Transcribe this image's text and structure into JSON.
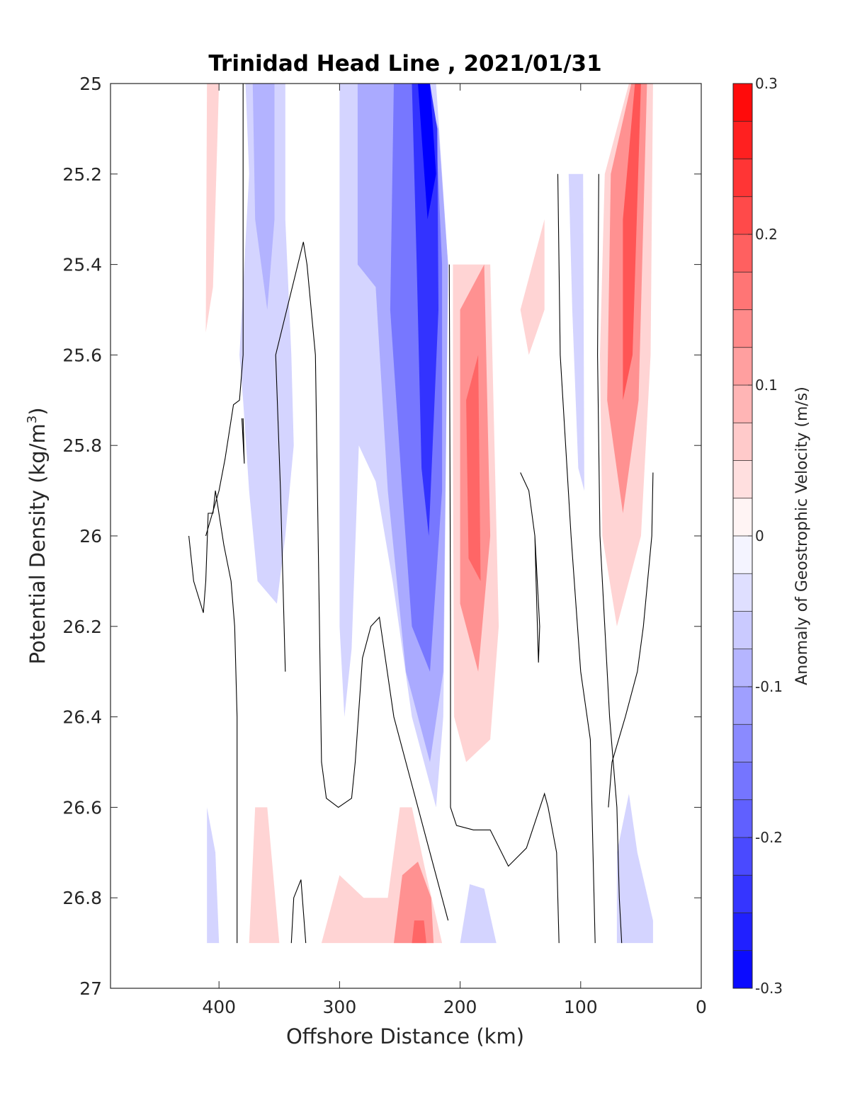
{
  "chart_data": {
    "type": "heatmap",
    "title": "Trinidad Head Line , 2021/01/31",
    "xlabel": "Offshore Distance (km)",
    "ylabel": "Potential Density (kg/m",
    "ylabel_superscript": "3",
    "ylabel_suffix": ")",
    "xlim": [
      490,
      0
    ],
    "ylim": [
      25,
      27
    ],
    "x_reversed": true,
    "y_reversed": true,
    "x_ticks": [
      400,
      300,
      200,
      100,
      0
    ],
    "y_ticks": [
      25,
      25.2,
      25.4,
      25.6,
      25.8,
      26,
      26.2,
      26.4,
      26.6,
      26.8,
      27
    ],
    "x_tick_labels": [
      "400",
      "300",
      "200",
      "100",
      "0"
    ],
    "y_tick_labels": [
      "25",
      "25.2",
      "25.4",
      "25.6",
      "25.8",
      "26",
      "26.2",
      "26.4",
      "26.6",
      "26.8",
      "27"
    ],
    "colorbar": {
      "label": "Anomaly of Geostrophic Velocity (m/s)",
      "range": [
        -0.3,
        0.3
      ],
      "levels": 24,
      "ticks": [
        -0.3,
        -0.2,
        -0.1,
        0,
        0.1,
        0.2,
        0.3
      ],
      "tick_labels": [
        "-0.3",
        "-0.2",
        "-0.1",
        "0",
        "0.1",
        "0.2",
        "0.3"
      ],
      "colormap": "blue-white-red"
    },
    "grid": false,
    "contours": [
      {
        "level": 0,
        "points": [
          [
            380,
            25
          ],
          [
            380,
            25.6
          ],
          [
            383,
            25.7
          ],
          [
            388,
            25.71
          ],
          [
            395,
            25.83
          ],
          [
            400,
            25.9
          ],
          [
            411,
            26
          ]
        ]
      },
      {
        "level": 0,
        "points": [
          [
            380,
            25.74
          ],
          [
            379,
            25.84
          ],
          [
            381,
            25.74
          ]
        ]
      },
      {
        "level": 0,
        "points": [
          [
            385,
            26.9
          ],
          [
            385,
            26.4
          ],
          [
            386,
            26.3
          ],
          [
            387,
            26.2
          ],
          [
            390,
            26.1
          ],
          [
            396,
            26.02
          ],
          [
            403,
            25.9
          ],
          [
            405,
            25.95
          ],
          [
            409,
            25.95
          ],
          [
            411,
            26.1
          ],
          [
            413,
            26.17
          ],
          [
            421,
            26.1
          ],
          [
            425,
            26
          ]
        ]
      },
      {
        "level": 0,
        "points": [
          [
            340,
            26.9
          ],
          [
            338,
            26.8
          ],
          [
            332,
            26.76
          ],
          [
            328,
            26.9
          ]
        ]
      },
      {
        "level": 0,
        "points": [
          [
            345,
            26.3
          ],
          [
            349,
            25.9
          ],
          [
            353,
            25.6
          ],
          [
            330,
            25.35
          ],
          [
            327,
            25.4
          ],
          [
            320,
            25.6
          ],
          [
            315,
            26.5
          ],
          [
            311,
            26.58
          ],
          [
            301,
            26.6
          ],
          [
            290,
            26.58
          ],
          [
            287,
            26.5
          ],
          [
            281,
            26.27
          ],
          [
            274,
            26.2
          ],
          [
            267,
            26.18
          ],
          [
            255,
            26.4
          ],
          [
            240,
            26.55
          ],
          [
            225,
            26.7
          ],
          [
            210,
            26.85
          ]
        ]
      },
      {
        "level": 0,
        "points": [
          [
            209,
            25.4
          ],
          [
            208,
            26.2
          ],
          [
            208,
            26.6
          ],
          [
            203,
            26.64
          ],
          [
            189,
            26.65
          ],
          [
            175,
            26.65
          ],
          [
            160,
            26.73
          ],
          [
            145,
            26.69
          ],
          [
            140,
            26.65
          ],
          [
            130,
            26.57
          ],
          [
            127,
            26.6
          ],
          [
            120,
            26.7
          ],
          [
            118,
            26.9
          ]
        ]
      },
      {
        "level": 0,
        "points": [
          [
            150,
            25.86
          ],
          [
            143,
            25.9
          ],
          [
            138,
            26.0
          ],
          [
            137,
            26.1
          ],
          [
            135,
            26.28
          ],
          [
            134,
            26.2
          ],
          [
            138,
            26.0
          ]
        ]
      },
      {
        "level": 0,
        "points": [
          [
            119,
            25.2
          ],
          [
            117,
            25.6
          ],
          [
            108,
            26
          ],
          [
            100,
            26.3
          ],
          [
            92,
            26.45
          ],
          [
            88,
            26.9
          ]
        ]
      },
      {
        "level": 0,
        "points": [
          [
            85,
            25.2
          ],
          [
            86,
            25.6
          ],
          [
            84,
            26
          ],
          [
            80,
            26.2
          ],
          [
            76,
            26.4
          ],
          [
            70,
            26.6
          ],
          [
            68,
            26.8
          ],
          [
            66,
            26.9
          ]
        ]
      },
      {
        "level": 0,
        "points": [
          [
            40,
            25.86
          ],
          [
            41,
            26
          ],
          [
            48,
            26.2
          ],
          [
            53,
            26.3
          ],
          [
            63,
            26.4
          ],
          [
            74,
            26.5
          ],
          [
            77,
            26.6
          ]
        ]
      }
    ],
    "regions": [
      {
        "value": -0.05,
        "points": [
          [
            345,
            25
          ],
          [
            345,
            25.3
          ],
          [
            340,
            25.6
          ],
          [
            338,
            25.8
          ],
          [
            345,
            26
          ],
          [
            352,
            26.15
          ],
          [
            368,
            26.1
          ],
          [
            375,
            25.9
          ],
          [
            380,
            25.7
          ],
          [
            383,
            25.6
          ],
          [
            375,
            25.2
          ],
          [
            378,
            25
          ]
        ]
      },
      {
        "value": -0.09,
        "points": [
          [
            354,
            25
          ],
          [
            354,
            25.3
          ],
          [
            360,
            25.5
          ],
          [
            370,
            25.3
          ],
          [
            372,
            25
          ]
        ]
      },
      {
        "value": -0.05,
        "points": [
          [
            300,
            25
          ],
          [
            300,
            26.2
          ],
          [
            296,
            26.4
          ],
          [
            290,
            26.25
          ],
          [
            284,
            25.8
          ],
          [
            270,
            25.88
          ],
          [
            256,
            26.1
          ],
          [
            240,
            26.4
          ],
          [
            220,
            26.6
          ],
          [
            214,
            26.4
          ],
          [
            210,
            25.4
          ],
          [
            215,
            25.2
          ],
          [
            220,
            25
          ],
          [
            300,
            25
          ]
        ]
      },
      {
        "value": -0.1,
        "points": [
          [
            285,
            25
          ],
          [
            285,
            25.4
          ],
          [
            270,
            25.45
          ],
          [
            260,
            25.9
          ],
          [
            245,
            26.3
          ],
          [
            225,
            26.5
          ],
          [
            214,
            26.3
          ],
          [
            210,
            25.4
          ],
          [
            218,
            25.1
          ],
          [
            230,
            25
          ]
        ]
      },
      {
        "value": -0.16,
        "points": [
          [
            255,
            25
          ],
          [
            258,
            25.5
          ],
          [
            248,
            25.9
          ],
          [
            240,
            26.2
          ],
          [
            225,
            26.3
          ],
          [
            215,
            25.9
          ],
          [
            215,
            25.4
          ],
          [
            220,
            25.1
          ],
          [
            235,
            25
          ]
        ]
      },
      {
        "value": -0.24,
        "points": [
          [
            240,
            25
          ],
          [
            236,
            25.4
          ],
          [
            232,
            25.85
          ],
          [
            226,
            26.0
          ],
          [
            218,
            25.5
          ],
          [
            219,
            25.1
          ],
          [
            225,
            25
          ]
        ]
      },
      {
        "value": -0.3,
        "points": [
          [
            235,
            25
          ],
          [
            227,
            25.3
          ],
          [
            220,
            25.2
          ],
          [
            225,
            25
          ]
        ]
      },
      {
        "value": 0.05,
        "points": [
          [
            405,
            25
          ],
          [
            410,
            25
          ],
          [
            411,
            25.55
          ],
          [
            405,
            25.45
          ],
          [
            400,
            25
          ]
        ]
      },
      {
        "value": 0.05,
        "points": [
          [
            206,
            25.4
          ],
          [
            175,
            25.4
          ],
          [
            168,
            26.2
          ],
          [
            175,
            26.45
          ],
          [
            195,
            26.5
          ],
          [
            205,
            26.4
          ],
          [
            206,
            25.8
          ]
        ]
      },
      {
        "value": 0.13,
        "points": [
          [
            200,
            25.5
          ],
          [
            180,
            25.4
          ],
          [
            175,
            26
          ],
          [
            185,
            26.3
          ],
          [
            200,
            26.15
          ]
        ]
      },
      {
        "value": 0.18,
        "points": [
          [
            195,
            25.7
          ],
          [
            185,
            25.6
          ],
          [
            183,
            26.1
          ],
          [
            193,
            26.05
          ]
        ]
      },
      {
        "value": 0.05,
        "points": [
          [
            150,
            25.5
          ],
          [
            130,
            25.3
          ],
          [
            130,
            25.5
          ],
          [
            143,
            25.6
          ]
        ]
      },
      {
        "value": 0.05,
        "points": [
          [
            80,
            25.2
          ],
          [
            60,
            25
          ],
          [
            40,
            25
          ],
          [
            42,
            25.6
          ],
          [
            50,
            26
          ],
          [
            70,
            26.2
          ],
          [
            82,
            26.0
          ],
          [
            84,
            25.6
          ]
        ]
      },
      {
        "value": 0.13,
        "points": [
          [
            75,
            25.2
          ],
          [
            58,
            25
          ],
          [
            45,
            25
          ],
          [
            52,
            25.7
          ],
          [
            65,
            25.95
          ],
          [
            78,
            25.7
          ]
        ]
      },
      {
        "value": 0.2,
        "points": [
          [
            65,
            25.3
          ],
          [
            55,
            25
          ],
          [
            50,
            25
          ],
          [
            57,
            25.6
          ],
          [
            65,
            25.7
          ]
        ]
      },
      {
        "value": -0.05,
        "points": [
          [
            410,
            26.6
          ],
          [
            403,
            26.7
          ],
          [
            400,
            26.9
          ],
          [
            410,
            26.9
          ]
        ]
      },
      {
        "value": -0.05,
        "points": [
          [
            110,
            25.2
          ],
          [
            98,
            25.2
          ],
          [
            97,
            25.9
          ],
          [
            102,
            25.85
          ],
          [
            107,
            25.5
          ]
        ]
      },
      {
        "value": 0.05,
        "points": [
          [
            375,
            26.9
          ],
          [
            370,
            26.6
          ],
          [
            360,
            26.6
          ],
          [
            350,
            26.9
          ]
        ]
      },
      {
        "value": 0.05,
        "points": [
          [
            315,
            26.9
          ],
          [
            300,
            26.75
          ],
          [
            280,
            26.8
          ],
          [
            260,
            26.8
          ],
          [
            250,
            26.6
          ],
          [
            240,
            26.6
          ],
          [
            228,
            26.75
          ],
          [
            215,
            26.9
          ]
        ]
      },
      {
        "value": 0.13,
        "points": [
          [
            255,
            26.9
          ],
          [
            248,
            26.75
          ],
          [
            235,
            26.72
          ],
          [
            224,
            26.8
          ],
          [
            222,
            26.9
          ]
        ]
      },
      {
        "value": 0.18,
        "points": [
          [
            240,
            26.9
          ],
          [
            238,
            26.85
          ],
          [
            230,
            26.85
          ],
          [
            228,
            26.9
          ]
        ]
      },
      {
        "value": -0.05,
        "points": [
          [
            200,
            26.9
          ],
          [
            192,
            26.77
          ],
          [
            180,
            26.78
          ],
          [
            170,
            26.9
          ]
        ]
      },
      {
        "value": -0.05,
        "points": [
          [
            70,
            26.9
          ],
          [
            70,
            26.7
          ],
          [
            60,
            26.57
          ],
          [
            53,
            26.7
          ],
          [
            40,
            26.85
          ],
          [
            40,
            26.9
          ]
        ]
      }
    ]
  }
}
